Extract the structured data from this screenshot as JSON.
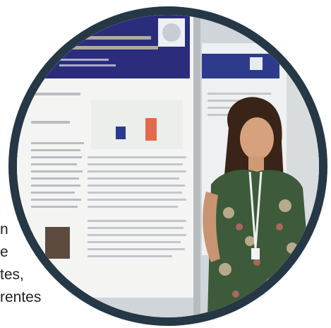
{
  "background_text_fragments": {
    "line1": "n",
    "line2": "e",
    "line3": "tes,",
    "line4": "rentes"
  },
  "photo": {
    "subject": "person-standing-beside-poster",
    "poster_header_color": "#2b2d7c",
    "frame_color": "#263746"
  }
}
